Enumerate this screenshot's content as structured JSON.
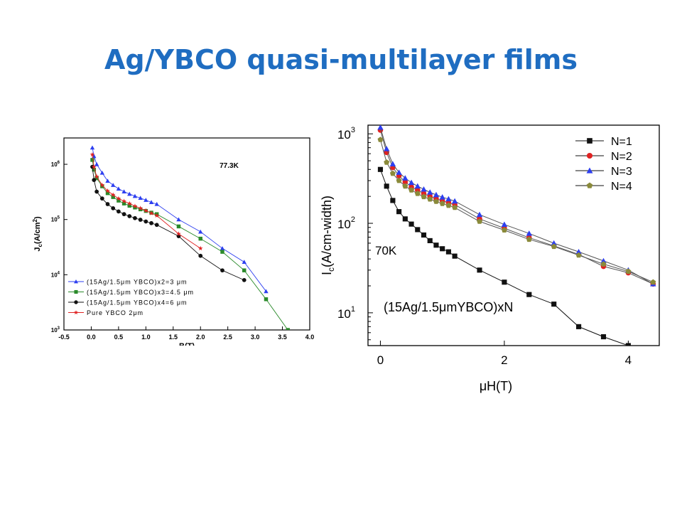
{
  "slide": {
    "title": "Ag/YBCO quasi-multilayer films"
  },
  "chart_data": [
    {
      "type": "line",
      "title": "",
      "annotation": "77.3K",
      "xlabel": "B(T)",
      "ylabel": "J_c(A/cm^2)",
      "y_scale": "log",
      "xlim": [
        -0.5,
        4.0
      ],
      "ylim": [
        1000,
        3000000
      ],
      "x_ticks": [
        "-0.5",
        "0.0",
        "0.5",
        "1.0",
        "1.5",
        "2.0",
        "2.5",
        "3.0",
        "3.5",
        "4.0"
      ],
      "y_ticks": [
        {
          "value": 1000,
          "label": "10",
          "exp": "3"
        },
        {
          "value": 10000,
          "label": "10",
          "exp": "4"
        },
        {
          "value": 100000,
          "label": "10",
          "exp": "5"
        },
        {
          "value": 1000000,
          "label": "10",
          "exp": "6"
        }
      ],
      "legend_position": "bottom-left",
      "series": [
        {
          "name": "(15Ag/1.5μm YBCO)x2=3 μm",
          "color": "#2d3ff0",
          "marker": "triangle",
          "points": [
            [
              0.02,
              2000000
            ],
            [
              0.05,
              1400000
            ],
            [
              0.1,
              1000000
            ],
            [
              0.2,
              700000
            ],
            [
              0.3,
              500000
            ],
            [
              0.4,
              420000
            ],
            [
              0.5,
              360000
            ],
            [
              0.6,
              320000
            ],
            [
              0.7,
              290000
            ],
            [
              0.8,
              265000
            ],
            [
              0.9,
              245000
            ],
            [
              1.0,
              225000
            ],
            [
              1.1,
              205000
            ],
            [
              1.2,
              190000
            ],
            [
              1.6,
              100000
            ],
            [
              2.0,
              60000
            ],
            [
              2.4,
              30000
            ],
            [
              2.8,
              17000
            ],
            [
              3.2,
              5000
            ]
          ]
        },
        {
          "name": "(15Ag/1.5μm YBCO)x3=4.5 μm",
          "color": "#2a8a2a",
          "marker": "square",
          "points": [
            [
              0.02,
              1200000
            ],
            [
              0.05,
              800000
            ],
            [
              0.1,
              560000
            ],
            [
              0.2,
              400000
            ],
            [
              0.3,
              300000
            ],
            [
              0.4,
              255000
            ],
            [
              0.5,
              220000
            ],
            [
              0.6,
              195000
            ],
            [
              0.7,
              178000
            ],
            [
              0.8,
              165000
            ],
            [
              0.9,
              153000
            ],
            [
              1.0,
              143000
            ],
            [
              1.1,
              133000
            ],
            [
              1.2,
              125000
            ],
            [
              1.6,
              75000
            ],
            [
              2.0,
              45000
            ],
            [
              2.4,
              26000
            ],
            [
              2.8,
              12000
            ],
            [
              3.2,
              3600
            ],
            [
              3.6,
              1000
            ]
          ]
        },
        {
          "name": "(15Ag/1.5μm YBCO)x4=6 μm",
          "color": "#111111",
          "marker": "circle",
          "points": [
            [
              0.02,
              900000
            ],
            [
              0.05,
              520000
            ],
            [
              0.1,
              320000
            ],
            [
              0.2,
              240000
            ],
            [
              0.3,
              190000
            ],
            [
              0.4,
              160000
            ],
            [
              0.5,
              140000
            ],
            [
              0.6,
              125000
            ],
            [
              0.7,
              115000
            ],
            [
              0.8,
              106000
            ],
            [
              0.9,
              99000
            ],
            [
              1.0,
              92000
            ],
            [
              1.1,
              86000
            ],
            [
              1.2,
              80000
            ],
            [
              1.6,
              50000
            ],
            [
              2.0,
              22000
            ],
            [
              2.4,
              12000
            ],
            [
              2.8,
              8000
            ]
          ]
        },
        {
          "name": "Pure YBCO 2μm",
          "color": "#e02222",
          "marker": "star",
          "points": [
            [
              0.02,
              1500000
            ],
            [
              0.05,
              900000
            ],
            [
              0.1,
              600000
            ],
            [
              0.2,
              420000
            ],
            [
              0.3,
              330000
            ],
            [
              0.4,
              280000
            ],
            [
              0.5,
              240000
            ],
            [
              0.6,
              215000
            ],
            [
              0.7,
              195000
            ],
            [
              0.8,
              175000
            ],
            [
              0.9,
              160000
            ],
            [
              1.0,
              145000
            ],
            [
              1.1,
              130000
            ],
            [
              1.2,
              118000
            ],
            [
              1.6,
              55000
            ],
            [
              2.0,
              30000
            ]
          ]
        }
      ]
    },
    {
      "type": "line",
      "title": "",
      "annotations": [
        "70K",
        "(15Ag/1.5μmYBCO)xN"
      ],
      "xlabel": "μH(T)",
      "ylabel": "I_c(A/cm-width)",
      "y_scale": "log",
      "xlim": [
        -0.2,
        4.5
      ],
      "ylim": [
        4.3,
        1250
      ],
      "x_ticks": [
        "0",
        "2",
        "4"
      ],
      "y_ticks": [
        {
          "value": 10,
          "label": "10",
          "exp": "1"
        },
        {
          "value": 100,
          "label": "10",
          "exp": "2"
        },
        {
          "value": 1000,
          "label": "10",
          "exp": "3"
        }
      ],
      "legend_position": "top-right",
      "series": [
        {
          "name": "N=1",
          "color": "#111111",
          "marker": "square",
          "points": [
            [
              0.0,
              400
            ],
            [
              0.1,
              260
            ],
            [
              0.2,
              180
            ],
            [
              0.3,
              135
            ],
            [
              0.4,
              112
            ],
            [
              0.5,
              98
            ],
            [
              0.6,
              85
            ],
            [
              0.7,
              74
            ],
            [
              0.8,
              64
            ],
            [
              0.9,
              57
            ],
            [
              1.0,
              52
            ],
            [
              1.1,
              48
            ],
            [
              1.2,
              43
            ],
            [
              1.6,
              30
            ],
            [
              2.0,
              22
            ],
            [
              2.4,
              16
            ],
            [
              2.8,
              12.5
            ],
            [
              3.2,
              7
            ],
            [
              3.6,
              5.4
            ],
            [
              4.0,
              4.3
            ]
          ]
        },
        {
          "name": "N=2",
          "color": "#e02222",
          "marker": "circle",
          "points": [
            [
              0.0,
              1100
            ],
            [
              0.1,
              620
            ],
            [
              0.2,
              420
            ],
            [
              0.3,
              340
            ],
            [
              0.4,
              290
            ],
            [
              0.5,
              255
            ],
            [
              0.6,
              235
            ],
            [
              0.7,
              215
            ],
            [
              0.8,
              200
            ],
            [
              0.9,
              188
            ],
            [
              1.0,
              178
            ],
            [
              1.1,
              170
            ],
            [
              1.2,
              162
            ],
            [
              1.6,
              112
            ],
            [
              2.0,
              88
            ],
            [
              2.4,
              69
            ],
            [
              2.8,
              56
            ],
            [
              3.2,
              45
            ],
            [
              3.6,
              33
            ],
            [
              4.0,
              28
            ],
            [
              4.4,
              21
            ]
          ]
        },
        {
          "name": "N=3",
          "color": "#2d3ff0",
          "marker": "triangle",
          "points": [
            [
              0.0,
              1180
            ],
            [
              0.1,
              680
            ],
            [
              0.2,
              460
            ],
            [
              0.3,
              370
            ],
            [
              0.4,
              320
            ],
            [
              0.5,
              285
            ],
            [
              0.6,
              260
            ],
            [
              0.7,
              240
            ],
            [
              0.8,
              222
            ],
            [
              0.9,
              208
            ],
            [
              1.0,
              196
            ],
            [
              1.1,
              187
            ],
            [
              1.2,
              177
            ],
            [
              1.6,
              125
            ],
            [
              2.0,
              97
            ],
            [
              2.4,
              77
            ],
            [
              2.8,
              60
            ],
            [
              3.2,
              48
            ],
            [
              3.6,
              38
            ],
            [
              4.0,
              30
            ],
            [
              4.4,
              21
            ]
          ]
        },
        {
          "name": "N=4",
          "color": "#8a8a3a",
          "marker": "pentagon",
          "points": [
            [
              0.0,
              860
            ],
            [
              0.1,
              480
            ],
            [
              0.2,
              360
            ],
            [
              0.3,
              300
            ],
            [
              0.4,
              260
            ],
            [
              0.5,
              235
            ],
            [
              0.6,
              215
            ],
            [
              0.7,
              198
            ],
            [
              0.8,
              186
            ],
            [
              0.9,
              175
            ],
            [
              1.0,
              166
            ],
            [
              1.1,
              158
            ],
            [
              1.2,
              150
            ],
            [
              1.6,
              105
            ],
            [
              2.0,
              84
            ],
            [
              2.4,
              66
            ],
            [
              2.8,
              55
            ],
            [
              3.2,
              44
            ],
            [
              3.6,
              35
            ],
            [
              4.0,
              29
            ],
            [
              4.4,
              22
            ]
          ]
        }
      ]
    }
  ]
}
